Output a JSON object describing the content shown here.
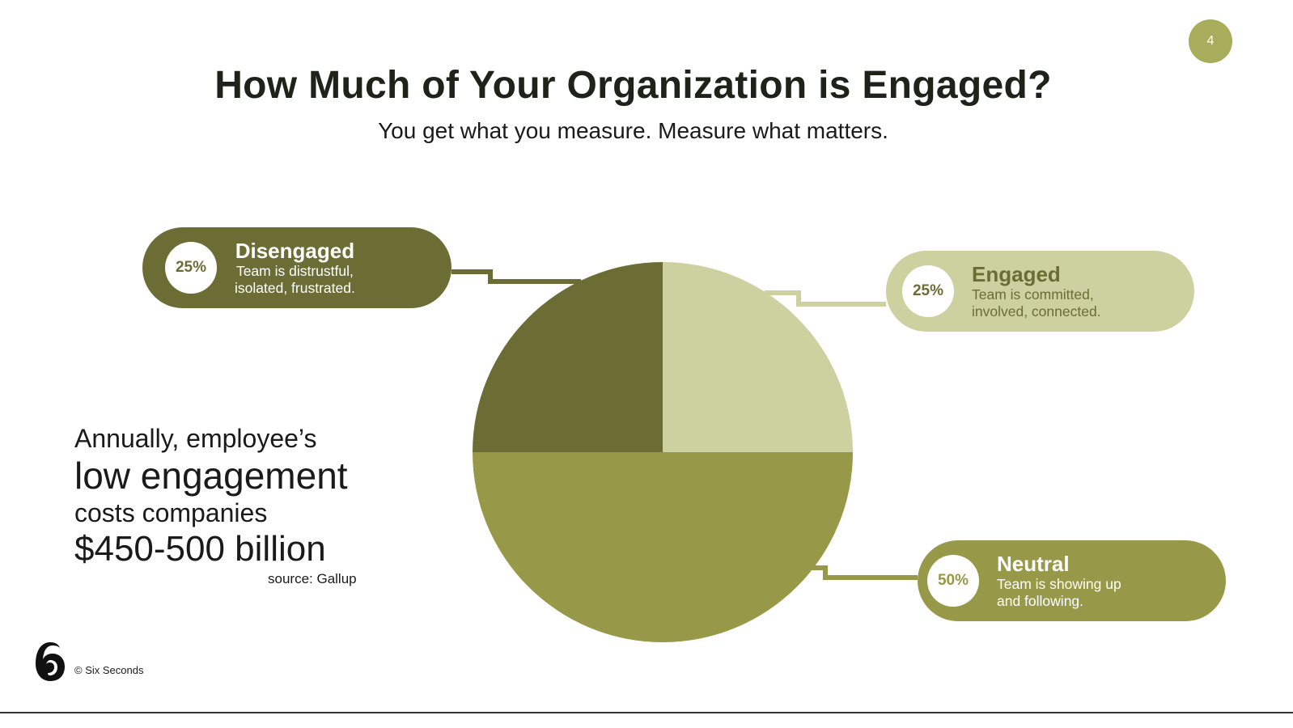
{
  "slide": {
    "page_number": "4",
    "title": "How Much of Your Organization is Engaged?",
    "subtitle": "You get what you measure. Measure what matters."
  },
  "chart_data": {
    "type": "pie",
    "categories": [
      "Engaged",
      "Neutral",
      "Disengaged"
    ],
    "values": [
      25,
      50,
      25
    ],
    "start": "12 o'clock, clockwise",
    "colors": [
      "#cdd1a0",
      "#989948",
      "#6c6d35"
    ]
  },
  "callouts": {
    "disengaged": {
      "pct": "25%",
      "label": "Disengaged",
      "desc_line1": "Team is distrustful,",
      "desc_line2": "isolated, frustrated.",
      "color": "#6c6d35"
    },
    "engaged": {
      "pct": "25%",
      "label": "Engaged",
      "desc_line1": "Team is committed,",
      "desc_line2": "involved, connected.",
      "color": "#cdd1a0"
    },
    "neutral": {
      "pct": "50%",
      "label": "Neutral",
      "desc_line1": "Team is showing up",
      "desc_line2": "and following.",
      "color": "#989948"
    }
  },
  "stat": {
    "line1": "Annually, employee’s",
    "line2": "low engagement",
    "line3": "costs companies",
    "line4": "$450-500 billion",
    "source": "source: Gallup"
  },
  "footer": {
    "copyright": "© Six Seconds",
    "logo_icon": "six-seconds-logo-icon"
  }
}
